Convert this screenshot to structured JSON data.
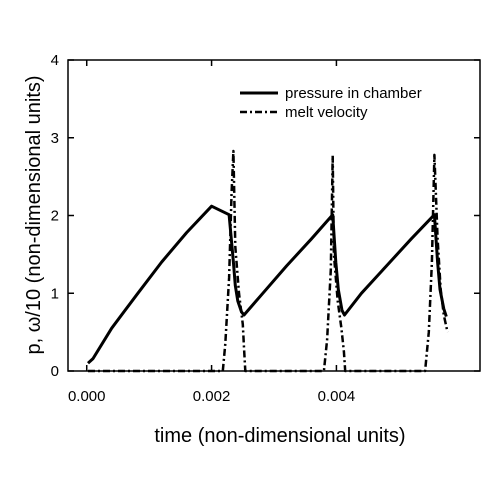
{
  "chart_data": {
    "type": "line",
    "title": "",
    "xlabel": "time (non-dimensional units)",
    "ylabel": "p, ω/10 (non-dimensional units)",
    "xlim": [
      -0.0003,
      0.0063
    ],
    "ylim": [
      0,
      4
    ],
    "x_ticks": [
      0.0,
      0.002,
      0.004
    ],
    "x_tick_labels": [
      "0.000",
      "0.002",
      "0.004"
    ],
    "y_ticks": [
      0,
      1,
      2,
      3,
      4
    ],
    "y_tick_labels": [
      "0",
      "1",
      "2",
      "3",
      "4"
    ],
    "grid": false,
    "legend_position": "top-right",
    "series": [
      {
        "name": "pressure in chamber",
        "style": "solid",
        "color": "#000000",
        "x": [
          2e-05,
          0.0001,
          0.0004,
          0.0008,
          0.0012,
          0.0016,
          0.002,
          0.00228,
          0.00235,
          0.00238,
          0.00242,
          0.00248,
          0.00252,
          0.0028,
          0.0032,
          0.0036,
          0.00394,
          0.00399,
          0.00403,
          0.00409,
          0.00413,
          0.0044,
          0.0048,
          0.0052,
          0.00557,
          0.00562,
          0.00566,
          0.00572,
          0.00576
        ],
        "y": [
          0.1,
          0.16,
          0.55,
          0.98,
          1.4,
          1.78,
          2.12,
          2.01,
          1.4,
          1.1,
          0.9,
          0.76,
          0.72,
          0.98,
          1.35,
          1.7,
          2.01,
          1.4,
          1.05,
          0.78,
          0.72,
          1.0,
          1.35,
          1.7,
          2.01,
          1.4,
          1.05,
          0.8,
          0.7
        ]
      },
      {
        "name": "melt velocity",
        "style": "dash-dot",
        "color": "#000000",
        "x": [
          2e-05,
          0.00218,
          0.00222,
          0.00228,
          0.00232,
          0.00235,
          0.00238,
          0.00244,
          0.0025,
          0.00252,
          0.00254,
          0.0038,
          0.00385,
          0.00391,
          0.00394,
          0.00396,
          0.00402,
          0.00408,
          0.00412,
          0.00414,
          0.00542,
          0.00548,
          0.00553,
          0.00557,
          0.00562,
          0.00567,
          0.00572,
          0.00578
        ],
        "y": [
          0.0,
          0.0,
          0.35,
          1.2,
          2.3,
          2.83,
          1.6,
          1.0,
          0.6,
          0.3,
          0.0,
          0.0,
          0.4,
          1.3,
          2.77,
          1.5,
          0.9,
          0.55,
          0.25,
          0.0,
          0.0,
          0.5,
          1.4,
          2.78,
          1.7,
          1.05,
          0.72,
          0.5
        ]
      }
    ]
  }
}
